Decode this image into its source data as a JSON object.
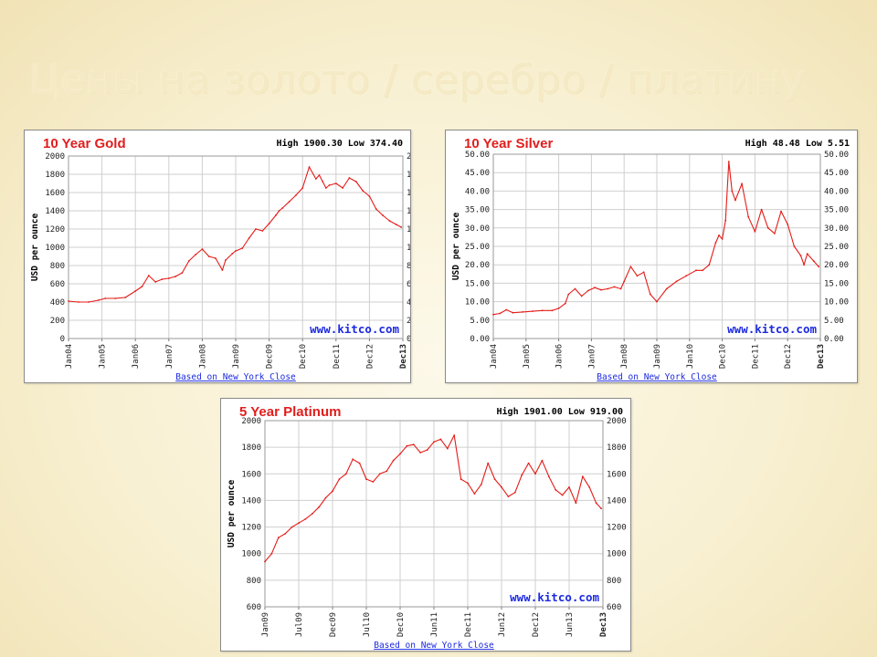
{
  "slide": {
    "title": "Цены на золото / серебро / платину"
  },
  "chart_data": [
    {
      "type": "line",
      "title": "10 Year Gold",
      "stats": "High 1900.30 Low 374.40",
      "ylabel": "USD per ounce",
      "xlabel": "Based on New York Close",
      "watermark": "www.kitco.com",
      "ylim": [
        0,
        2000
      ],
      "yticks": [
        "0",
        "200",
        "400",
        "600",
        "800",
        "1000",
        "1200",
        "1400",
        "1600",
        "1800",
        "2000"
      ],
      "xticks": [
        "Jan04",
        "Jan05",
        "Jan06",
        "Jan07",
        "Jan08",
        "Jan09",
        "Dec09",
        "Dec10",
        "Dec11",
        "Dec12",
        "Dec13"
      ],
      "grid": true,
      "series": [
        {
          "color": "#e41b17",
          "x": [
            0,
            0.3,
            0.6,
            0.9,
            1.1,
            1.4,
            1.7,
            2.0,
            2.2,
            2.4,
            2.6,
            2.8,
            3.0,
            3.2,
            3.4,
            3.6,
            3.8,
            4.0,
            4.2,
            4.4,
            4.6,
            4.7,
            4.9,
            5.0,
            5.2,
            5.4,
            5.6,
            5.8,
            6.0,
            6.2,
            6.3,
            6.4,
            6.6,
            6.8,
            7.0,
            7.2,
            7.4,
            7.5,
            7.6,
            7.7,
            7.8,
            8.0,
            8.2,
            8.4,
            8.6,
            8.8,
            9.0,
            9.2,
            9.4,
            9.6,
            9.8,
            9.95
          ],
          "values": [
            410,
            400,
            400,
            420,
            440,
            440,
            450,
            520,
            570,
            690,
            620,
            650,
            660,
            680,
            720,
            850,
            920,
            980,
            900,
            880,
            750,
            860,
            930,
            960,
            990,
            1100,
            1200,
            1180,
            1260,
            1350,
            1400,
            1430,
            1500,
            1570,
            1650,
            1880,
            1750,
            1790,
            1720,
            1650,
            1680,
            1700,
            1650,
            1760,
            1720,
            1620,
            1560,
            1420,
            1350,
            1290,
            1250,
            1220
          ]
        }
      ]
    },
    {
      "type": "line",
      "title": "10 Year Silver",
      "stats": "High 48.48 Low 5.51",
      "ylabel": "USD per ounce",
      "xlabel": "Based on New York Close",
      "watermark": "www.kitco.com",
      "ylim": [
        0,
        50
      ],
      "yticks": [
        "0.00",
        "5.00",
        "10.00",
        "15.00",
        "20.00",
        "25.00",
        "30.00",
        "35.00",
        "40.00",
        "45.00",
        "50.00"
      ],
      "xticks": [
        "Jan04",
        "Jan05",
        "Jan06",
        "Jan07",
        "Jan08",
        "Jan09",
        "Jan10",
        "Dec10",
        "Dec11",
        "Dec12",
        "Dec13"
      ],
      "grid": true,
      "series": [
        {
          "color": "#e41b17",
          "x": [
            0,
            0.2,
            0.4,
            0.6,
            0.9,
            1.2,
            1.5,
            1.8,
            2.0,
            2.2,
            2.3,
            2.5,
            2.7,
            2.9,
            3.1,
            3.3,
            3.5,
            3.7,
            3.9,
            4.0,
            4.2,
            4.4,
            4.6,
            4.8,
            5.0,
            5.3,
            5.6,
            5.9,
            6.2,
            6.4,
            6.6,
            6.8,
            6.9,
            7.0,
            7.1,
            7.2,
            7.3,
            7.4,
            7.6,
            7.8,
            8.0,
            8.2,
            8.4,
            8.6,
            8.8,
            9.0,
            9.2,
            9.4,
            9.5,
            9.6,
            9.8,
            9.95
          ],
          "values": [
            6.5,
            6.8,
            7.8,
            7.0,
            7.2,
            7.4,
            7.6,
            7.6,
            8.2,
            9.5,
            12.0,
            13.5,
            11.5,
            13.0,
            13.8,
            13.2,
            13.5,
            14.0,
            13.5,
            15.5,
            19.5,
            17.0,
            18.0,
            12.0,
            10.0,
            13.5,
            15.5,
            17.0,
            18.5,
            18.5,
            20.0,
            26.0,
            28.0,
            27.0,
            32.0,
            48.0,
            40.0,
            37.5,
            42.0,
            33.0,
            29.0,
            35.0,
            30.0,
            28.5,
            34.5,
            31.0,
            25.0,
            22.5,
            20.0,
            23.0,
            21.0,
            19.5
          ]
        }
      ]
    },
    {
      "type": "line",
      "title": "5 Year Platinum",
      "stats": "High 1901.00 Low 919.00",
      "ylabel": "USD per ounce",
      "xlabel": "Based on New York Close",
      "watermark": "www.kitco.com",
      "ylim": [
        600,
        2000
      ],
      "yticks": [
        "600",
        "800",
        "1000",
        "1200",
        "1400",
        "1600",
        "1800",
        "2000"
      ],
      "xticks": [
        "Jan09",
        "Jul09",
        "Dec09",
        "Jul10",
        "Dec10",
        "Jun11",
        "Dec11",
        "Jun12",
        "Dec12",
        "Jun13",
        "Dec13"
      ],
      "grid": true,
      "series": [
        {
          "color": "#e41b17",
          "x": [
            0,
            0.2,
            0.4,
            0.6,
            0.8,
            1.0,
            1.2,
            1.4,
            1.6,
            1.8,
            2.0,
            2.2,
            2.4,
            2.6,
            2.8,
            3.0,
            3.2,
            3.4,
            3.6,
            3.8,
            4.0,
            4.2,
            4.4,
            4.6,
            4.8,
            5.0,
            5.2,
            5.4,
            5.6,
            5.8,
            6.0,
            6.2,
            6.4,
            6.6,
            6.8,
            7.0,
            7.2,
            7.4,
            7.6,
            7.8,
            8.0,
            8.2,
            8.4,
            8.6,
            8.8,
            9.0,
            9.2,
            9.4,
            9.6,
            9.8,
            9.95
          ],
          "values": [
            940,
            1000,
            1120,
            1150,
            1200,
            1230,
            1260,
            1300,
            1350,
            1420,
            1470,
            1560,
            1600,
            1710,
            1680,
            1560,
            1540,
            1600,
            1620,
            1700,
            1750,
            1810,
            1820,
            1760,
            1780,
            1840,
            1860,
            1790,
            1890,
            1560,
            1530,
            1450,
            1520,
            1680,
            1560,
            1500,
            1430,
            1460,
            1590,
            1680,
            1600,
            1700,
            1580,
            1480,
            1440,
            1500,
            1380,
            1580,
            1500,
            1380,
            1340
          ]
        }
      ]
    }
  ]
}
